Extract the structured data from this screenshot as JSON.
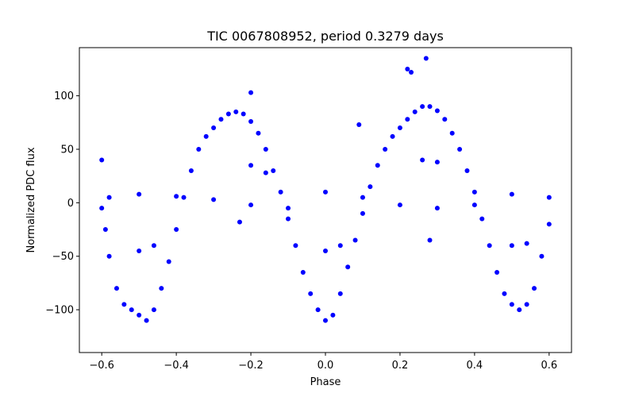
{
  "chart_data": {
    "type": "scatter",
    "title": "TIC 0067808952, period 0.3279 days",
    "xlabel": "Phase",
    "ylabel": "Normalized PDC flux",
    "xlim": [
      -0.66,
      0.66
    ],
    "ylim": [
      -140,
      145
    ],
    "xticks": [
      -0.6,
      -0.4,
      -0.2,
      0.0,
      0.2,
      0.4,
      0.6
    ],
    "xtick_labels": [
      "−0.6",
      "−0.4",
      "−0.2",
      "0.0",
      "0.2",
      "0.4",
      "0.6"
    ],
    "yticks": [
      -100,
      -50,
      0,
      50,
      100
    ],
    "ytick_labels": [
      "−100",
      "−50",
      "0",
      "50",
      "100"
    ],
    "grid": false,
    "marker_color": "#0000ff",
    "series": [
      {
        "values": [
          [
            -0.6,
            -5
          ],
          [
            -0.59,
            -25
          ],
          [
            -0.58,
            -50
          ],
          [
            -0.56,
            -80
          ],
          [
            -0.54,
            -95
          ],
          [
            -0.52,
            -100
          ],
          [
            -0.5,
            -105
          ],
          [
            -0.48,
            -110
          ],
          [
            -0.46,
            -100
          ],
          [
            -0.44,
            -80
          ],
          [
            -0.42,
            -55
          ],
          [
            -0.4,
            -25
          ],
          [
            -0.38,
            5
          ],
          [
            -0.36,
            30
          ],
          [
            -0.34,
            50
          ],
          [
            -0.32,
            62
          ],
          [
            -0.3,
            70
          ],
          [
            -0.28,
            78
          ],
          [
            -0.26,
            83
          ],
          [
            -0.24,
            85
          ],
          [
            -0.22,
            83
          ],
          [
            -0.2,
            76
          ],
          [
            -0.18,
            65
          ],
          [
            -0.16,
            50
          ],
          [
            -0.14,
            30
          ],
          [
            -0.12,
            10
          ],
          [
            -0.1,
            -15
          ],
          [
            -0.08,
            -40
          ],
          [
            -0.06,
            -65
          ],
          [
            -0.04,
            -85
          ],
          [
            -0.02,
            -100
          ],
          [
            0.0,
            -110
          ],
          [
            0.02,
            -105
          ],
          [
            0.04,
            -85
          ],
          [
            0.06,
            -60
          ],
          [
            0.08,
            -35
          ],
          [
            0.1,
            -10
          ],
          [
            0.12,
            15
          ],
          [
            0.14,
            35
          ],
          [
            0.16,
            50
          ],
          [
            0.18,
            62
          ],
          [
            0.2,
            70
          ],
          [
            0.22,
            78
          ],
          [
            0.24,
            85
          ],
          [
            0.26,
            90
          ],
          [
            0.28,
            90
          ],
          [
            0.3,
            86
          ],
          [
            0.32,
            78
          ],
          [
            0.34,
            65
          ],
          [
            0.36,
            50
          ],
          [
            0.38,
            30
          ],
          [
            0.4,
            10
          ],
          [
            0.42,
            -15
          ],
          [
            0.44,
            -40
          ],
          [
            0.46,
            -65
          ],
          [
            0.48,
            -85
          ],
          [
            0.5,
            -95
          ],
          [
            0.52,
            -100
          ],
          [
            0.54,
            -95
          ],
          [
            0.56,
            -80
          ],
          [
            0.58,
            -50
          ],
          [
            0.6,
            -20
          ],
          [
            -0.58,
            5
          ],
          [
            -0.5,
            8
          ],
          [
            -0.4,
            6
          ],
          [
            -0.3,
            3
          ],
          [
            -0.2,
            -2
          ],
          [
            -0.1,
            -5
          ],
          [
            0.0,
            10
          ],
          [
            0.1,
            5
          ],
          [
            0.2,
            -2
          ],
          [
            0.3,
            -5
          ],
          [
            0.4,
            -2
          ],
          [
            0.5,
            8
          ],
          [
            0.6,
            5
          ],
          [
            -0.5,
            -45
          ],
          [
            -0.46,
            -40
          ],
          [
            -0.2,
            35
          ],
          [
            -0.16,
            28
          ],
          [
            0.0,
            -45
          ],
          [
            0.04,
            -40
          ],
          [
            0.26,
            40
          ],
          [
            0.3,
            38
          ],
          [
            0.5,
            -40
          ],
          [
            0.54,
            -38
          ],
          [
            0.22,
            125
          ],
          [
            0.27,
            135
          ],
          [
            0.23,
            122
          ],
          [
            -0.2,
            103
          ],
          [
            0.09,
            73
          ],
          [
            0.28,
            -35
          ],
          [
            -0.23,
            -18
          ],
          [
            -0.6,
            40
          ]
        ]
      }
    ]
  }
}
